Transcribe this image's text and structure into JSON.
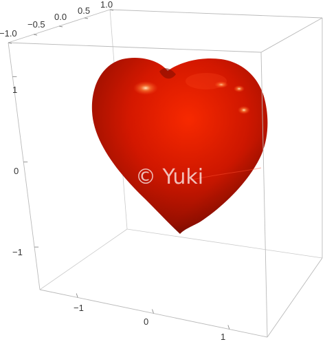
{
  "chart_data": {
    "type": "surface3d",
    "title": "",
    "xlabel": "",
    "ylabel": "",
    "zlabel": "",
    "x_ticks": [
      "−1",
      "0",
      "1"
    ],
    "y_ticks": [
      "−1.0",
      "−0.5",
      "0.0",
      "0.5",
      "1.0"
    ],
    "z_ticks": [
      "−1",
      "0",
      "1"
    ],
    "xlim": [
      -1.5,
      1.5
    ],
    "ylim": [
      -1.0,
      1.0
    ],
    "zlim": [
      -1.5,
      1.4
    ],
    "surface": "heart",
    "surface_color": "#cc1a00",
    "box": true
  },
  "watermark": "© Yuki"
}
